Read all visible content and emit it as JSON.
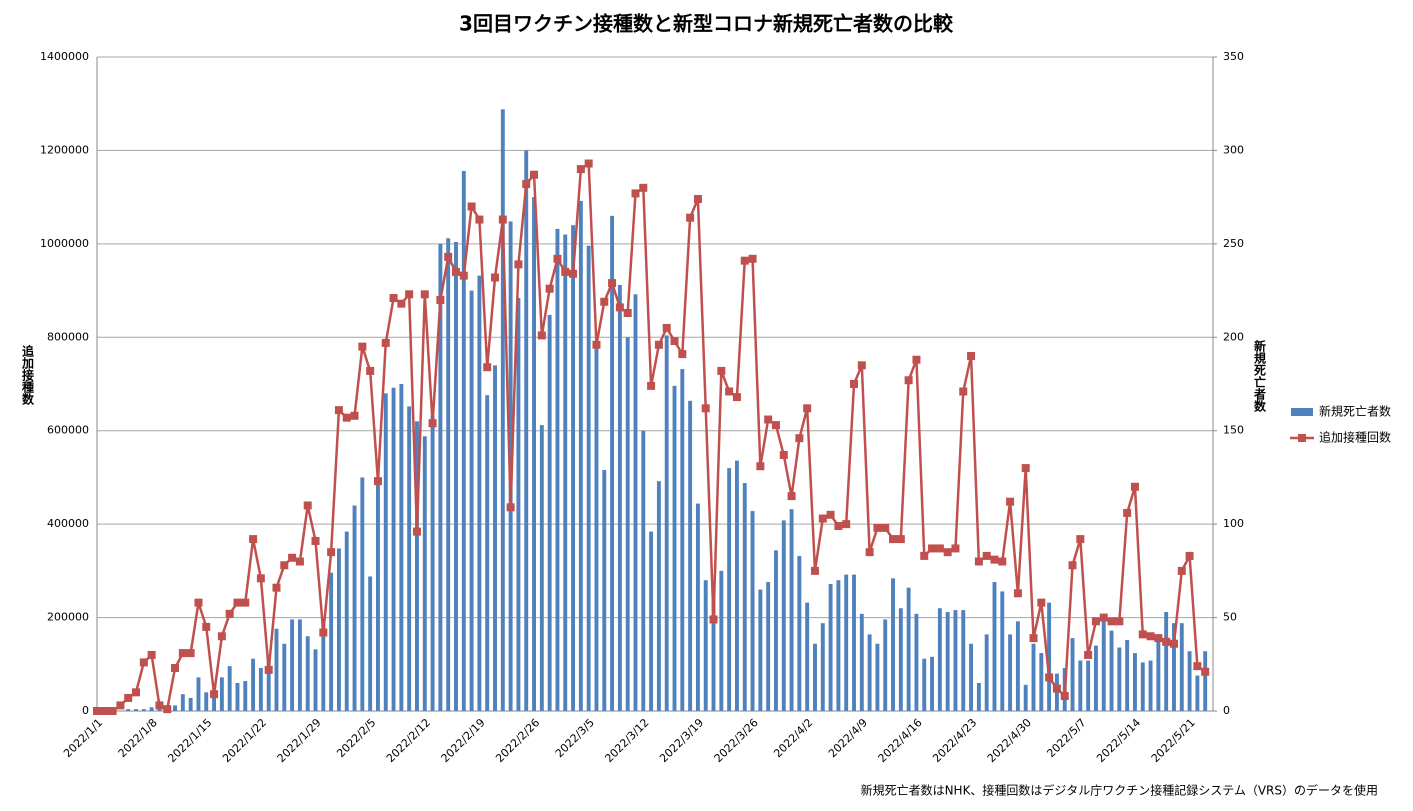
{
  "chart_data": {
    "type": "bar-line",
    "title": "3回目ワクチン接種数と新型コロナ新規死亡者数の比較",
    "ylabel": "追加接種数",
    "y2label": "新規死亡者数",
    "note": "新規死亡者数はNHK、接種回数はデジタル庁ワクチン接種記録システム（VRS）のデータを使用",
    "categories": [
      "2022/1/1",
      null,
      null,
      null,
      null,
      null,
      null,
      "2022/1/8",
      null,
      null,
      null,
      null,
      null,
      null,
      "2022/1/15",
      null,
      null,
      null,
      null,
      null,
      null,
      "2022/1/22",
      null,
      null,
      null,
      null,
      null,
      null,
      "2022/1/29",
      null,
      null,
      null,
      null,
      null,
      null,
      "2022/2/5",
      null,
      null,
      null,
      null,
      null,
      null,
      "2022/2/12",
      null,
      null,
      null,
      null,
      null,
      null,
      "2022/2/19",
      null,
      null,
      null,
      null,
      null,
      null,
      "2022/2/26",
      null,
      null,
      null,
      null,
      null,
      null,
      "2022/3/5",
      null,
      null,
      null,
      null,
      null,
      null,
      "2022/3/12",
      null,
      null,
      null,
      null,
      null,
      null,
      "2022/3/19",
      null,
      null,
      null,
      null,
      null,
      null,
      "2022/3/26",
      null,
      null,
      null,
      null,
      null,
      null,
      "2022/4/2",
      null,
      null,
      null,
      null,
      null,
      null,
      "2022/4/9",
      null,
      null,
      null,
      null,
      null,
      null,
      "2022/4/16",
      null,
      null,
      null,
      null,
      null,
      null,
      "2022/4/23",
      null,
      null,
      null,
      null,
      null,
      null,
      "2022/4/30",
      null,
      null,
      null,
      null,
      null,
      null,
      "2022/5/7",
      null,
      null,
      null,
      null,
      null,
      null,
      "2022/5/14",
      null,
      null,
      null,
      null,
      null,
      null,
      "2022/5/21",
      null,
      null
    ],
    "series": [
      {
        "name": "新規死亡者数",
        "kind": "bar",
        "axis": "y2",
        "color": "#4f81bd",
        "values": [
          0,
          0,
          1,
          0,
          1,
          1,
          1,
          2,
          3,
          0,
          3,
          9,
          7,
          18,
          10,
          7,
          18,
          24,
          15,
          16,
          28,
          23,
          30,
          44,
          36,
          49,
          49,
          40,
          33,
          49,
          74,
          87,
          96,
          110,
          125,
          72,
          121,
          170,
          173,
          175,
          163,
          155,
          147,
          158,
          250,
          253,
          251,
          289,
          225,
          233,
          169,
          185,
          322,
          262,
          221,
          300,
          275,
          153,
          212,
          258,
          255,
          260,
          273,
          249,
          196,
          129,
          265,
          228,
          200,
          223,
          150,
          96,
          123,
          201,
          174,
          183,
          166,
          111,
          70,
          59,
          75,
          130,
          134,
          122,
          107,
          65,
          69,
          86,
          102,
          108,
          83,
          58,
          36,
          47,
          68,
          70,
          73,
          73,
          52,
          41,
          36,
          49,
          71,
          55,
          66,
          52,
          28,
          29,
          55,
          53,
          54,
          54,
          36,
          15,
          41,
          69,
          64,
          41,
          48,
          14,
          36,
          31,
          58,
          20,
          23,
          39,
          27,
          27,
          35,
          50,
          43,
          34,
          38,
          31,
          26,
          27,
          41,
          53,
          47,
          47,
          32,
          19,
          32
        ]
      },
      {
        "name": "追加接種回数",
        "kind": "line",
        "axis": "y",
        "color": "#c0504d",
        "values": [
          0,
          0,
          0,
          12000,
          28000,
          40000,
          104000,
          120000,
          12000,
          4000,
          92000,
          124000,
          124000,
          232000,
          180000,
          36000,
          160000,
          208000,
          232000,
          232000,
          368000,
          284000,
          88000,
          264000,
          312000,
          328000,
          320000,
          440000,
          364000,
          168000,
          340000,
          644000,
          628000,
          632000,
          780000,
          728000,
          492000,
          788000,
          884000,
          872000,
          892000,
          384000,
          892000,
          616000,
          880000,
          972000,
          940000,
          932000,
          1080000,
          1052000,
          736000,
          928000,
          1052000,
          436000,
          956000,
          1128000,
          1148000,
          804000,
          904000,
          968000,
          940000,
          936000,
          1160000,
          1172000,
          784000,
          876000,
          916000,
          864000,
          852000,
          1108000,
          1120000,
          696000,
          784000,
          820000,
          792000,
          764000,
          1056000,
          1096000,
          648000,
          196000,
          728000,
          684000,
          672000,
          964000,
          968000,
          524000,
          624000,
          612000,
          548000,
          460000,
          584000,
          648000,
          300000,
          412000,
          420000,
          396000,
          400000,
          700000,
          740000,
          340000,
          392000,
          392000,
          368000,
          368000,
          708000,
          752000,
          332000,
          348000,
          348000,
          340000,
          348000,
          684000,
          760000,
          320000,
          332000,
          324000,
          320000,
          448000,
          252000,
          520000,
          156000,
          232000,
          72000,
          48000,
          32000,
          312000,
          368000,
          120000,
          192000,
          200000,
          192000,
          192000,
          424000,
          480000,
          164000,
          160000,
          156000,
          148000,
          144000,
          300000,
          332000,
          96000,
          84000
        ]
      }
    ],
    "ylim": [
      0,
      1400000
    ],
    "yticks": [
      0,
      200000,
      400000,
      600000,
      800000,
      1000000,
      1200000,
      1400000
    ],
    "y2lim": [
      0,
      350
    ],
    "y2ticks": [
      0,
      50,
      100,
      150,
      200,
      250,
      300,
      350
    ],
    "grid": true,
    "legend": "right"
  }
}
